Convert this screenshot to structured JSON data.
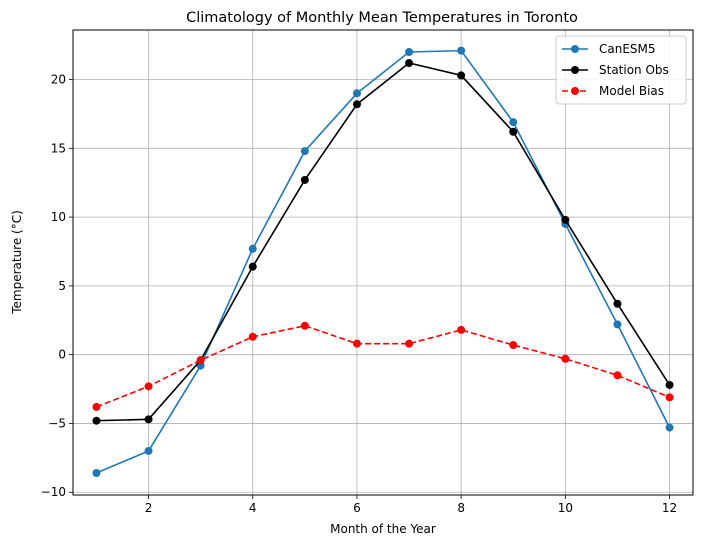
{
  "chart_data": {
    "type": "line",
    "title": "Climatology of Monthly Mean Temperatures in Toronto",
    "xlabel": "Month of the Year",
    "ylabel": "Temperature (°C)",
    "xlim": [
      0.55,
      12.45
    ],
    "ylim": [
      -10.2,
      23.6
    ],
    "xticks": [
      2,
      4,
      6,
      8,
      10,
      12
    ],
    "yticks": [
      -10,
      -5,
      0,
      5,
      10,
      15,
      20
    ],
    "grid": true,
    "legend_position": "top-right",
    "x": [
      1,
      2,
      3,
      4,
      5,
      6,
      7,
      8,
      9,
      10,
      11,
      12
    ],
    "series": [
      {
        "name": "CanESM5",
        "color": "#1f77b4",
        "linestyle": "solid",
        "values": [
          -8.6,
          -7.0,
          -0.8,
          7.7,
          14.8,
          19.0,
          22.0,
          22.1,
          16.9,
          9.5,
          2.2,
          -5.3
        ]
      },
      {
        "name": "Station Obs",
        "color": "#000000",
        "linestyle": "solid",
        "values": [
          -4.8,
          -4.7,
          -0.4,
          6.4,
          12.7,
          18.2,
          21.2,
          20.3,
          16.2,
          9.8,
          3.7,
          -2.2
        ]
      },
      {
        "name": "Model Bias",
        "color": "#ff0000",
        "linestyle": "dashed",
        "values": [
          -3.8,
          -2.3,
          -0.4,
          1.3,
          2.1,
          0.8,
          0.8,
          1.8,
          0.7,
          -0.3,
          -1.5,
          -3.1
        ]
      }
    ]
  }
}
